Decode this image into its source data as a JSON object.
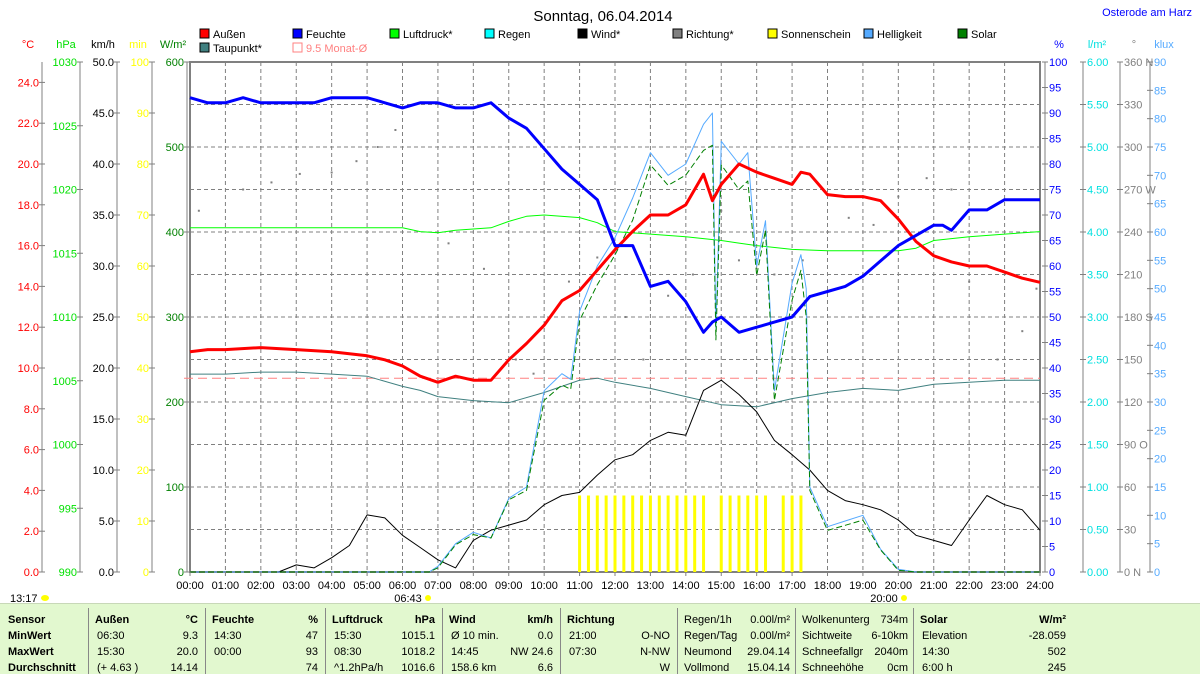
{
  "header": {
    "title": "Sonntag, 06.04.2014",
    "location": "Osterode am Harz"
  },
  "legend": [
    {
      "label": "Außen",
      "color": "#ff0000"
    },
    {
      "label": "Feuchte",
      "color": "#0000ff"
    },
    {
      "label": "Luftdruck*",
      "color": "#00ff00"
    },
    {
      "label": "Regen",
      "color": "#00ffff"
    },
    {
      "label": "Wind*",
      "color": "#000000"
    },
    {
      "label": "Richtung*",
      "color": "#808080"
    },
    {
      "label": "Sonnenschein",
      "color": "#ffff00"
    },
    {
      "label": "Helligkeit",
      "color": "#55aaff"
    },
    {
      "label": "Solar",
      "color": "#008000"
    },
    {
      "label": "Taupunkt*",
      "color": "#408080"
    },
    {
      "label": "9.5 Monat-Ø",
      "color": "#ff8080",
      "outline": true
    }
  ],
  "chart_data": {
    "type": "line",
    "title": "Sonntag, 06.04.2014",
    "xlabel": "Uhrzeit",
    "x_range": [
      0,
      24
    ],
    "x_ticks": [
      "00:00",
      "01:00",
      "02:00",
      "03:00",
      "04:00",
      "05:00",
      "06:00",
      "07:00",
      "08:00",
      "09:00",
      "10:00",
      "11:00",
      "12:00",
      "13:00",
      "14:00",
      "15:00",
      "16:00",
      "17:00",
      "18:00",
      "19:00",
      "20:00",
      "21:00",
      "22:00",
      "23:00",
      "24:00"
    ],
    "grid": true,
    "left_axes": [
      {
        "unit": "°C",
        "min": 0,
        "max": 25,
        "step": 2,
        "decimals": 1,
        "color": "#ff0000"
      },
      {
        "unit": "hPa",
        "min": 990,
        "max": 1030,
        "step": 5,
        "decimals": 0,
        "color": "#00e000"
      },
      {
        "unit": "km/h",
        "min": 0,
        "max": 50,
        "step": 5,
        "decimals": 1,
        "color": "#000000"
      },
      {
        "unit": "min",
        "min": 0,
        "max": 100,
        "step": 10,
        "decimals": 0,
        "color": "#ffff00"
      },
      {
        "unit": "W/m²",
        "min": 0,
        "max": 600,
        "step": 100,
        "decimals": 0,
        "color": "#008000"
      }
    ],
    "right_axes": [
      {
        "unit": "%",
        "min": 0,
        "max": 100,
        "step": 5,
        "decimals": 0,
        "color": "#0000ff"
      },
      {
        "unit": "l/m²",
        "min": 0,
        "max": 6,
        "step": 0.5,
        "decimals": 2,
        "color": "#00e0e0"
      },
      {
        "unit": "°",
        "min": 0,
        "max": 360,
        "step": 30,
        "decimals": 0,
        "color": "#808080",
        "compass": {
          "0": "N",
          "90": "O",
          "180": "S",
          "270": "W",
          "360": "N"
        }
      },
      {
        "unit": "klux",
        "min": 0,
        "max": 90,
        "step": 5,
        "decimals": 0,
        "color": "#55aaff"
      }
    ],
    "series": [
      {
        "name": "Taupunkt*",
        "axis": "°C",
        "color": "#408080",
        "width": 1,
        "x": [
          0,
          1,
          2,
          3,
          4,
          5,
          6,
          6.5,
          7,
          8,
          9,
          10,
          11,
          11.5,
          12,
          13,
          14,
          15,
          16,
          17,
          18,
          19,
          20,
          21,
          22,
          23,
          24
        ],
        "y": [
          9.7,
          9.7,
          9.8,
          9.8,
          9.7,
          9.6,
          9.1,
          8.9,
          8.6,
          8.4,
          8.3,
          8.8,
          9.4,
          9.5,
          9.3,
          9.0,
          8.6,
          8.2,
          8.1,
          8.5,
          8.8,
          9.0,
          8.9,
          9.2,
          9.3,
          9.4,
          9.4
        ]
      },
      {
        "name": "Luftdruck*",
        "axis": "hPa",
        "color": "#00ff00",
        "width": 1,
        "x": [
          0,
          6,
          6.5,
          7,
          7.5,
          8,
          8.5,
          9,
          9.5,
          10,
          11,
          11.5,
          12,
          13,
          14,
          15,
          15.5,
          16,
          17,
          18,
          19,
          20,
          20.5,
          21,
          22,
          23,
          24
        ],
        "y": [
          1017.0,
          1017.0,
          1016.7,
          1016.6,
          1016.8,
          1016.9,
          1017.0,
          1017.5,
          1017.9,
          1018.0,
          1017.8,
          1017.4,
          1016.7,
          1016.5,
          1016.3,
          1016.0,
          1015.8,
          1015.6,
          1015.3,
          1015.2,
          1015.2,
          1015.2,
          1015.4,
          1016.0,
          1016.3,
          1016.5,
          1016.7
        ]
      },
      {
        "name": "Wind*",
        "axis": "km/h",
        "color": "#000000",
        "width": 1,
        "x": [
          0,
          1,
          2,
          2.5,
          3,
          3.5,
          4,
          4.5,
          5,
          5.5,
          6,
          6.5,
          7,
          7.5,
          8,
          8.5,
          9,
          9.5,
          10,
          10.5,
          11,
          11.5,
          12,
          12.5,
          13,
          13.5,
          14,
          14.5,
          15,
          15.5,
          16,
          16.5,
          17,
          17.5,
          18,
          18.5,
          19,
          19.5,
          20,
          20.5,
          21,
          21.5,
          22,
          22.5,
          23,
          23.5,
          24
        ],
        "y": [
          0,
          0,
          0,
          0,
          0.7,
          0.4,
          1.4,
          2.6,
          5.6,
          5.3,
          3.6,
          2.4,
          1.2,
          0.4,
          3.1,
          4.1,
          4.6,
          5.1,
          6.6,
          7.5,
          7.8,
          9.5,
          11.0,
          11.5,
          12.9,
          13.7,
          13.4,
          17.8,
          18.8,
          17.4,
          15.7,
          12.9,
          11.5,
          10.0,
          8.0,
          7.0,
          6.6,
          6.1,
          5.1,
          3.6,
          3.1,
          2.6,
          5.1,
          7.5,
          6.6,
          6.1,
          4.1
        ]
      },
      {
        "name": "Helligkeit",
        "axis": "klux",
        "color": "#55aaff",
        "width": 1,
        "x": [
          0,
          6.75,
          7,
          7.5,
          8,
          8.5,
          9,
          9.5,
          10,
          10.5,
          10.75,
          11,
          11.5,
          12,
          12.5,
          13,
          13.5,
          14,
          14.5,
          14.75,
          14.85,
          15,
          15.5,
          15.75,
          16,
          16.25,
          16.5,
          17,
          17.25,
          17.4,
          17.5,
          18,
          18.5,
          19,
          19.5,
          20,
          20.5,
          24
        ],
        "y": [
          0,
          0,
          1,
          5,
          7,
          6,
          13,
          15,
          32,
          35,
          34,
          46,
          54,
          59,
          66,
          74,
          70,
          72,
          79,
          81,
          43,
          76,
          72,
          74,
          54,
          62,
          32,
          51,
          56,
          50,
          15,
          8,
          9,
          10,
          4,
          0.5,
          0,
          0
        ]
      },
      {
        "name": "Solar",
        "axis": "W/m²",
        "color": "#008000",
        "width": 1,
        "dash": true,
        "x": [
          0,
          6.75,
          7,
          7.5,
          8,
          8.5,
          9,
          9.5,
          10,
          10.5,
          10.75,
          11,
          11.5,
          12,
          12.5,
          13,
          13.5,
          14,
          14.5,
          14.75,
          14.85,
          15,
          15.5,
          15.75,
          16,
          16.25,
          16.5,
          17,
          17.25,
          17.4,
          17.5,
          18,
          18.5,
          19,
          19.5,
          20,
          20.5,
          24
        ],
        "y": [
          0,
          0,
          5,
          32,
          44,
          40,
          85,
          96,
          202,
          220,
          215,
          296,
          338,
          373,
          414,
          479,
          455,
          467,
          496,
          502,
          273,
          479,
          450,
          460,
          349,
          402,
          202,
          320,
          355,
          300,
          96,
          49,
          55,
          61,
          26,
          2,
          0,
          0
        ]
      },
      {
        "name": "Außen",
        "axis": "°C",
        "color": "#ff0000",
        "width": 3,
        "x": [
          0,
          0.5,
          1,
          2,
          3,
          4,
          5,
          5.5,
          6,
          6.5,
          7,
          7.5,
          8,
          8.5,
          9,
          9.5,
          10,
          10.5,
          11,
          11.5,
          12,
          12.5,
          13,
          13.5,
          14,
          14.5,
          14.75,
          15,
          15.5,
          16,
          16.5,
          17,
          17.25,
          17.5,
          18,
          18.5,
          19,
          19.5,
          20,
          20.5,
          21,
          21.5,
          22,
          22.5,
          23,
          23.5,
          24
        ],
        "y": [
          10.8,
          10.9,
          10.9,
          11.0,
          10.9,
          10.8,
          10.6,
          10.4,
          10.1,
          9.6,
          9.3,
          9.6,
          9.4,
          9.4,
          10.4,
          11.2,
          12.1,
          13.3,
          13.8,
          14.8,
          15.8,
          16.7,
          17.5,
          17.5,
          18.0,
          19.5,
          18.2,
          19.0,
          20.0,
          19.6,
          19.3,
          19.0,
          19.6,
          19.5,
          18.5,
          18.4,
          18.4,
          18.2,
          17.3,
          16.2,
          15.5,
          15.2,
          15.0,
          15.0,
          14.7,
          14.4,
          14.2
        ]
      },
      {
        "name": "Feuchte",
        "axis": "%",
        "color": "#0000ff",
        "width": 3,
        "x": [
          0,
          0.5,
          1,
          1.5,
          2,
          3,
          3.5,
          4,
          5,
          5.5,
          6,
          6.5,
          7,
          7.5,
          8,
          8.5,
          9,
          9.5,
          10,
          10.5,
          11,
          11.5,
          12,
          12.25,
          12.5,
          13,
          13.5,
          14,
          14.5,
          14.75,
          15,
          15.5,
          16,
          16.5,
          17,
          17.5,
          18,
          18.5,
          19,
          19.5,
          20,
          20.5,
          21,
          21.25,
          21.5,
          22,
          22.5,
          23,
          23.5,
          24
        ],
        "y": [
          93,
          92,
          92,
          93,
          92,
          92,
          92,
          93,
          93,
          92,
          91,
          92,
          92,
          91,
          91,
          92,
          89,
          87,
          83,
          79,
          76,
          73,
          64,
          64,
          64,
          56,
          57,
          53,
          47,
          49,
          50,
          47,
          48,
          49,
          50,
          54,
          55,
          56,
          58,
          61,
          64,
          66,
          68,
          68,
          67,
          71,
          71,
          73,
          73,
          73
        ]
      }
    ],
    "direction_points": {
      "axis": "°",
      "color": "#808080",
      "x": [
        0.25,
        1.5,
        2.3,
        3.1,
        4.0,
        4.7,
        5.3,
        5.8,
        7.3,
        8.3,
        9.2,
        9.7,
        10.7,
        11.5,
        12.3,
        12.8,
        13.5,
        14.2,
        15.0,
        15.5,
        16.5,
        17.3,
        18.0,
        18.6,
        19.3,
        20.0,
        20.8,
        21.5,
        22.0,
        22.8,
        23.5,
        23.9
      ],
      "y": [
        255,
        270,
        275,
        281,
        282,
        290,
        300,
        312,
        232,
        214,
        150,
        140,
        205,
        222,
        180,
        150,
        195,
        210,
        255,
        220,
        210,
        220,
        240,
        250,
        245,
        265,
        278,
        270,
        205,
        150,
        170,
        200
      ]
    },
    "sunshine_bars": {
      "axis": "min",
      "color": "#ffff00",
      "value": 15,
      "x": [
        11.0,
        11.25,
        11.5,
        11.75,
        12.0,
        12.25,
        12.5,
        12.75,
        13.0,
        13.25,
        13.5,
        13.75,
        14.0,
        14.25,
        14.5,
        15.0,
        15.25,
        15.5,
        15.75,
        16.0,
        16.25,
        16.75,
        17.0,
        17.25
      ]
    },
    "reference_line": {
      "label": "9.5 Monat-Ø",
      "axis": "°C",
      "value": 9.5,
      "color": "#ff8080"
    },
    "annotations": {
      "sunrise": "06:43",
      "sunrise_hour": 6.72,
      "sunset": "20:00",
      "sunset_hour": 20.0,
      "current_time": "13:17"
    }
  },
  "table": {
    "sensor": {
      "header": "Sensor",
      "rows": [
        "MinWert",
        "MaxWert",
        "Durchschnitt"
      ]
    },
    "aussen": {
      "header": "Außen",
      "unit": "°C",
      "rows": [
        [
          "06:30",
          "9.3"
        ],
        [
          "15:30",
          "20.0"
        ],
        [
          "(+ 4.63 )",
          "14.14"
        ]
      ]
    },
    "feuchte": {
      "header": "Feuchte",
      "unit": "%",
      "rows": [
        [
          "14:30",
          "47"
        ],
        [
          "00:00",
          "93"
        ],
        [
          "",
          "74"
        ]
      ]
    },
    "luftdruck": {
      "header": "Luftdruck",
      "unit": "hPa",
      "rows": [
        [
          "15:30",
          "1015.1"
        ],
        [
          "08:30",
          "1018.2"
        ],
        [
          "^1.2hPa/h",
          "1016.6"
        ]
      ]
    },
    "wind": {
      "header": "Wind",
      "unit": "km/h",
      "rows": [
        [
          "Ø 10 min.",
          "0.0"
        ],
        [
          "14:45",
          "NW 24.6"
        ],
        [
          "158.6 km",
          "6.6"
        ]
      ]
    },
    "richtung": {
      "header": "Richtung",
      "rows": [
        [
          "21:00",
          "O-NO"
        ],
        [
          "07:30",
          "N-NW"
        ],
        [
          "",
          "W"
        ]
      ]
    },
    "regen": {
      "rows": [
        [
          "Regen/1h",
          "0.00l/m²"
        ],
        [
          "Regen/Tag",
          "0.00l/m²"
        ],
        [
          "Neumond",
          "29.04.14"
        ],
        [
          "Vollmond",
          "15.04.14"
        ]
      ]
    },
    "wolken": {
      "rows": [
        [
          "Wolkenunterg",
          "734m"
        ],
        [
          "Sichtweite",
          "6-10km"
        ],
        [
          "Schneefallgr",
          "2040m"
        ],
        [
          "Schneehöhe",
          "0cm"
        ]
      ]
    },
    "solar": {
      "header": "Solar",
      "unit": "W/m²",
      "rows": [
        [
          "Elevation",
          "-28.059"
        ],
        [
          "14:30",
          "502"
        ],
        [
          "6:00 h",
          "245"
        ]
      ]
    }
  }
}
